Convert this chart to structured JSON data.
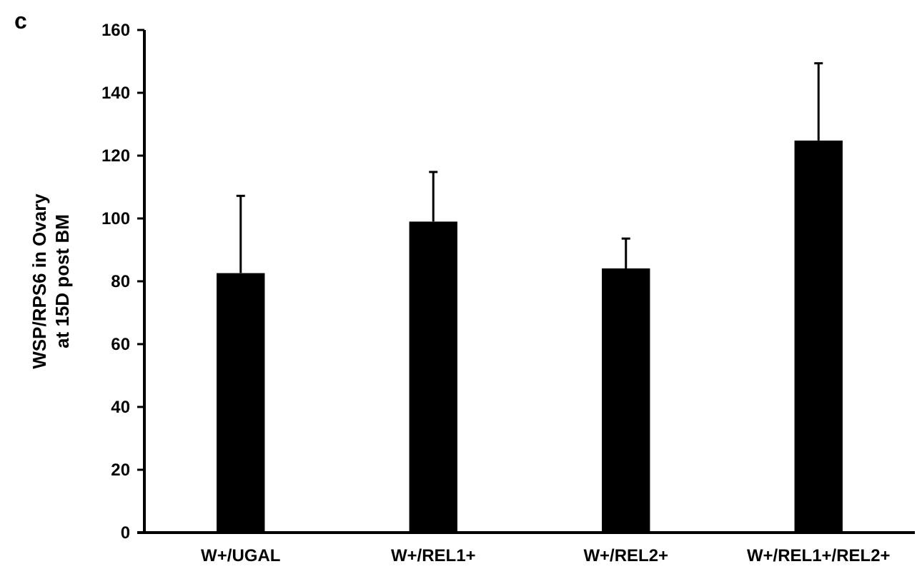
{
  "chart_data": {
    "type": "bar",
    "ylabel": "WSP/RPS6 in Ovary\nat 15D post BM",
    "annotations": [
      "c"
    ],
    "categories": [
      "W+/UGAL",
      "W+/REL1+",
      "W+/REL2+",
      "W+/REL1+/REL2+"
    ],
    "values": [
      82.6,
      99,
      84.1,
      124.8
    ],
    "errors": [
      [
        82.6,
        107.2
      ],
      [
        99,
        114.8
      ],
      [
        84.1,
        93.6
      ],
      [
        124.8,
        149.4
      ]
    ],
    "color": "#000000",
    "ylim": [
      0,
      160
    ],
    "yticks": [
      0,
      20,
      40,
      60,
      80,
      100,
      120,
      140,
      160
    ],
    "grid": false
  }
}
